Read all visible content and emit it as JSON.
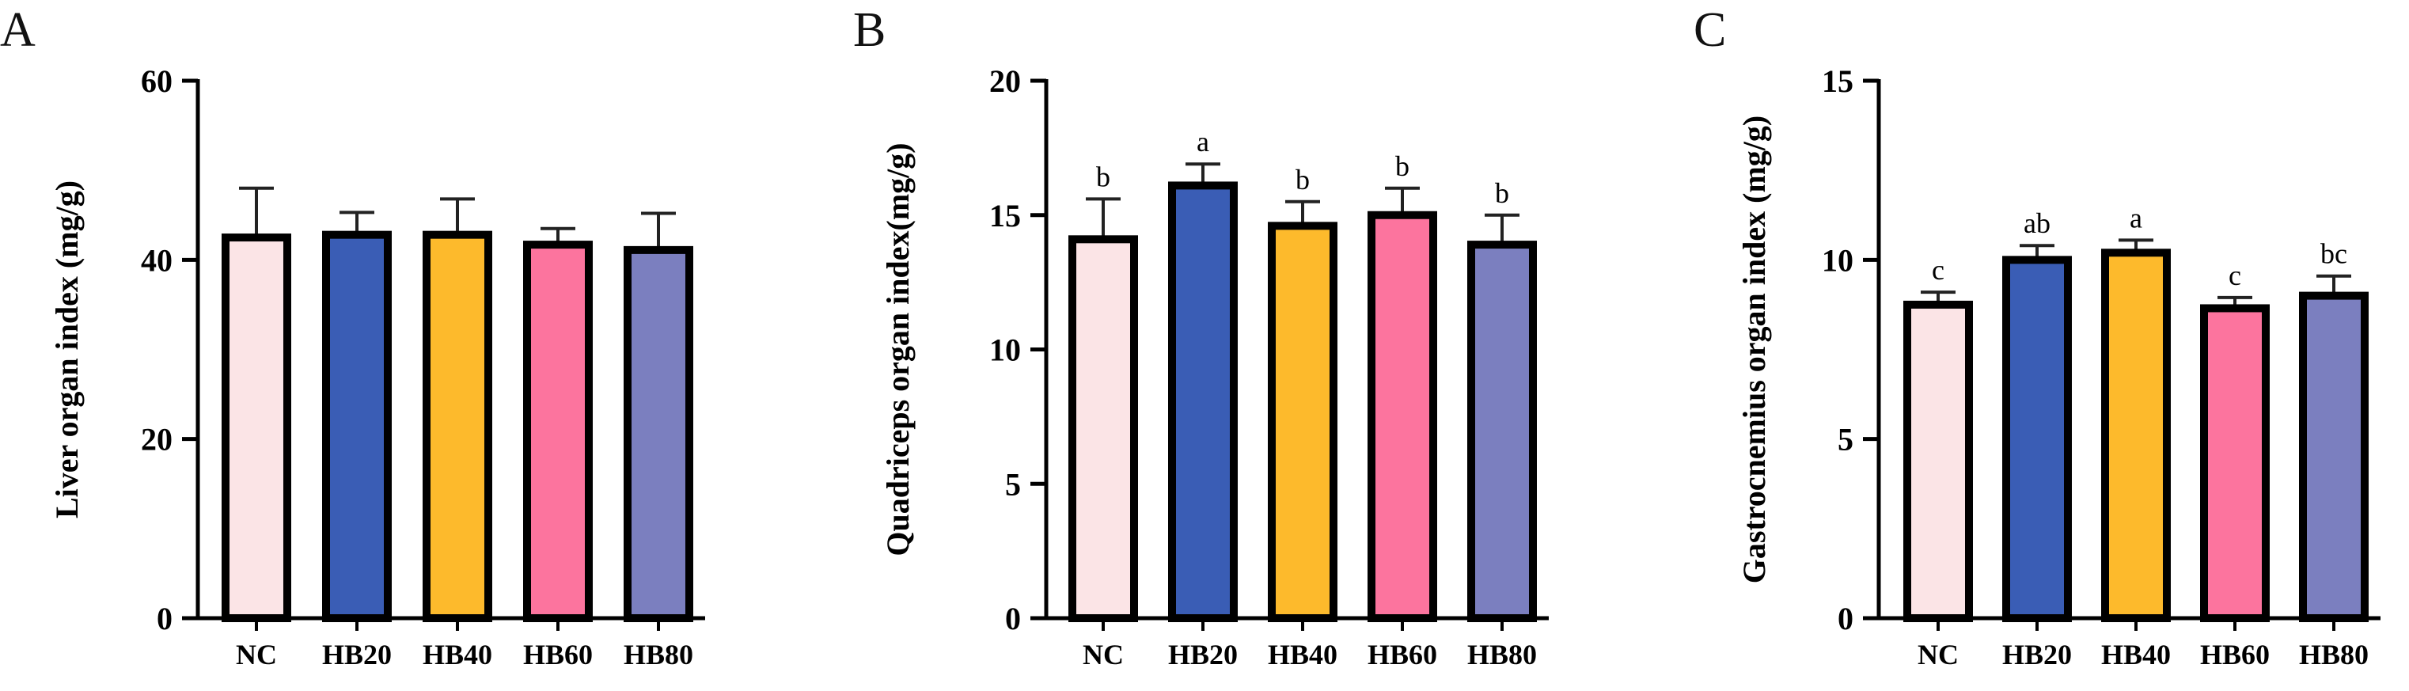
{
  "chart_data": [
    {
      "type": "bar",
      "panel_label": "A",
      "title": "",
      "xlabel": "",
      "ylabel": "Liver organ index (mg/g)",
      "categories": [
        "NC",
        "HB20",
        "HB40",
        "HB60",
        "HB80"
      ],
      "values": [
        42.5,
        42.8,
        42.8,
        41.7,
        41.1
      ],
      "errors": [
        5.5,
        2.5,
        4.0,
        1.8,
        4.1
      ],
      "significance": [
        "",
        "",
        "",
        "",
        ""
      ],
      "colors": [
        "#FBE4E6",
        "#3A5DB5",
        "#FDBA2C",
        "#FC749E",
        "#7B7FBF"
      ],
      "ylim": [
        0,
        60
      ],
      "yticks": [
        0,
        20,
        40,
        60
      ],
      "ytick_labels": [
        "0",
        "20",
        "40",
        "60"
      ],
      "legend": "none",
      "grid": false
    },
    {
      "type": "bar",
      "panel_label": "B",
      "title": "",
      "xlabel": "",
      "ylabel": "Quadriceps organ index(mg/g)",
      "categories": [
        "NC",
        "HB20",
        "HB40",
        "HB60",
        "HB80"
      ],
      "values": [
        14.1,
        16.1,
        14.6,
        15.0,
        13.9
      ],
      "errors": [
        1.5,
        0.8,
        0.9,
        1.0,
        1.1
      ],
      "significance": [
        "b",
        "a",
        "b",
        "b",
        "b"
      ],
      "colors": [
        "#FBE4E6",
        "#3A5DB5",
        "#FDBA2C",
        "#FC749E",
        "#7B7FBF"
      ],
      "ylim": [
        0,
        20
      ],
      "yticks": [
        0,
        5,
        10,
        15,
        20
      ],
      "ytick_labels": [
        "0",
        "5",
        "10",
        "15",
        "20"
      ],
      "legend": "none",
      "grid": false
    },
    {
      "type": "bar",
      "panel_label": "C",
      "title": "",
      "xlabel": "",
      "ylabel": "Gastrocnemius organ index (mg/g)",
      "categories": [
        "NC",
        "HB20",
        "HB40",
        "HB60",
        "HB80"
      ],
      "values": [
        8.75,
        10.0,
        10.2,
        8.65,
        9.0
      ],
      "errors": [
        0.35,
        0.4,
        0.35,
        0.3,
        0.55
      ],
      "significance": [
        "c",
        "ab",
        "a",
        "c",
        "bc"
      ],
      "colors": [
        "#FBE4E6",
        "#3A5DB5",
        "#FDBA2C",
        "#FC749E",
        "#7B7FBF"
      ],
      "ylim": [
        0,
        15
      ],
      "yticks": [
        0,
        5,
        10,
        15
      ],
      "ytick_labels": [
        "0",
        "5",
        "10",
        "15"
      ],
      "legend": "none",
      "grid": false
    }
  ]
}
